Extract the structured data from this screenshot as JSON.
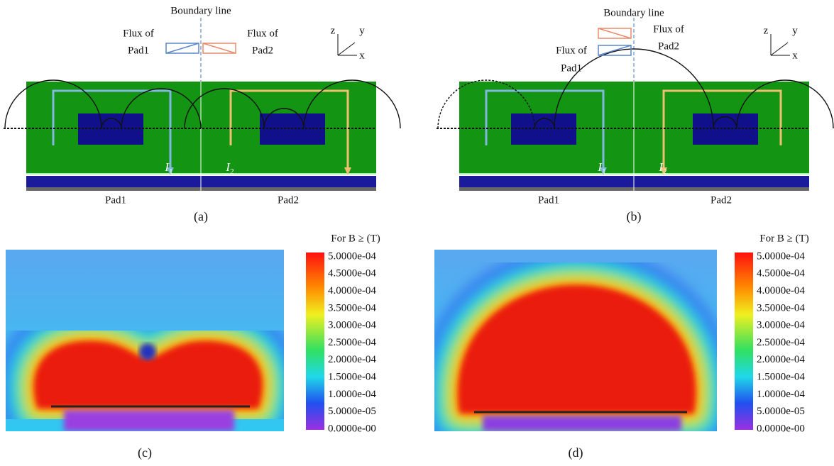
{
  "panels": [
    {
      "caption": "(a)",
      "boundary_label": "Boundary line",
      "flux_pad1": [
        "Flux of",
        "Pad1"
      ],
      "flux_pad2": [
        "Flux of",
        "Pad2"
      ],
      "axis_labels": [
        "z",
        "y",
        "x"
      ],
      "currents": [
        {
          "symbol": "I",
          "subscript": "1"
        },
        {
          "symbol": "I",
          "subscript": "2"
        }
      ],
      "pad_labels": [
        "Pad1",
        "Pad2"
      ]
    },
    {
      "caption": "(b)",
      "boundary_label": "Boundary line",
      "flux_pad1": [
        "Flux of",
        "Pad1"
      ],
      "flux_pad2": [
        "Flux of",
        "Pad2"
      ],
      "axis_labels": [
        "z",
        "y",
        "x"
      ],
      "currents": [
        {
          "symbol": "I",
          "subscript": "1"
        },
        {
          "symbol": "I",
          "subscript": "2"
        }
      ],
      "pad_labels": [
        "Pad1",
        "Pad2"
      ]
    },
    {
      "caption": "(c)",
      "colorbar": {
        "title": "For B ≥ (T)",
        "labels": [
          "5.0000e-04",
          "4.5000e-04",
          "4.0000e-04",
          "3.5000e-04",
          "3.0000e-04",
          "2.5000e-04",
          "2.0000e-04",
          "1.5000e-04",
          "1.0000e-04",
          "5.0000e-05",
          "0.0000e-00"
        ]
      }
    },
    {
      "caption": "(d)",
      "colorbar": {
        "title": "For B ≥ (T)",
        "labels": [
          "5.0000e-04",
          "4.5000e-04",
          "4.0000e-04",
          "3.5000e-04",
          "3.0000e-04",
          "2.5000e-04",
          "2.0000e-04",
          "1.5000e-04",
          "1.0000e-04",
          "5.0000e-05",
          "0.0000e-00"
        ]
      }
    }
  ]
}
